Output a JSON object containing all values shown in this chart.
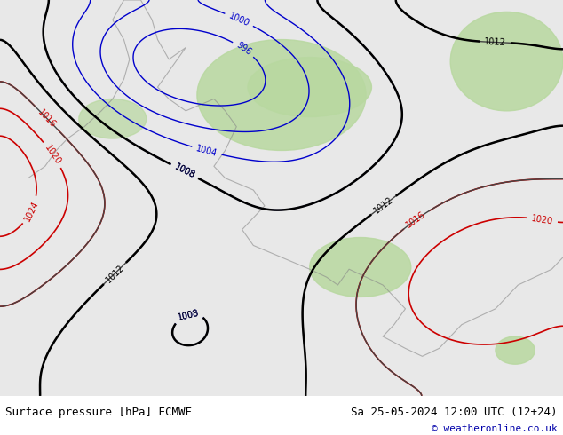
{
  "title_left": "Surface pressure [hPa] ECMWF",
  "title_right": "Sa 25-05-2024 12:00 UTC (12+24)",
  "copyright": "© weatheronline.co.uk",
  "bg_color": "#d0d8e8",
  "map_bg_color": "#e8e8e8",
  "land_color": "#c8c8c8",
  "green_area_color": "#b8d8a0",
  "figsize": [
    6.34,
    4.9
  ],
  "dpi": 100,
  "bottom_bar_color": "#ffffff",
  "bottom_bar_height": 0.09,
  "isobar_red_color": "#cc0000",
  "isobar_blue_color": "#0000cc",
  "isobar_black_color": "#000000",
  "isobar_label_fontsize": 7,
  "footer_fontsize": 9,
  "copyright_fontsize": 8,
  "copyright_color": "#0000aa"
}
